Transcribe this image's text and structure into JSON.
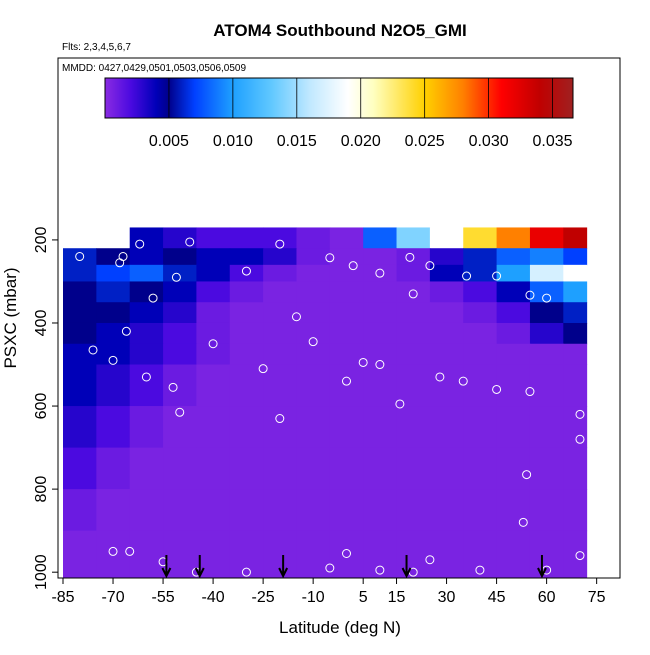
{
  "chart_data": {
    "type": "heatmap",
    "title": "ATOM4 Southbound N2O5_GMI",
    "subtitle": "Flts: 2,3,4,5,6,7",
    "annotation": "MMDD: 0427,0429,0501,0503,0506,0509",
    "xlabel": "Latitude (deg N)",
    "ylabel": "PSXC (mbar)",
    "xlim": [
      -86.5,
      82
    ],
    "ylim": [
      1014,
      -238
    ],
    "xticks": [
      -85,
      -70,
      -55,
      -40,
      -25,
      -10,
      5,
      15,
      30,
      45,
      60,
      75
    ],
    "yticks": [
      200,
      400,
      600,
      800,
      1000
    ],
    "x_edges": [
      -85,
      -75,
      -65,
      -55,
      -45,
      -35,
      -25,
      -15,
      -5,
      5,
      15,
      25,
      35,
      45,
      55,
      65,
      72
    ],
    "y_edges": [
      170,
      220,
      260,
      300,
      350,
      400,
      450,
      500,
      600,
      700,
      800,
      900,
      1014
    ],
    "z": [
      [
        null,
        null,
        0.004,
        0.003,
        0.002,
        0.002,
        0.002,
        0.001,
        0.0005,
        0.008,
        0.014,
        0.019,
        0.024,
        0.028,
        0.032,
        0.034
      ],
      [
        0.006,
        0.005,
        0.004,
        0.005,
        0.004,
        0.004,
        0.003,
        0.001,
        0.0005,
        0.0005,
        0.001,
        0.003,
        0.006,
        0.008,
        0.009,
        0.007
      ],
      [
        0.006,
        0.007,
        0.008,
        0.006,
        0.004,
        0.002,
        0.001,
        0.0005,
        0.0005,
        0.0005,
        0.001,
        0.004,
        0.006,
        0.01,
        0.017,
        0.019
      ],
      [
        0.005,
        0.006,
        0.005,
        0.004,
        0.002,
        0.001,
        0.0005,
        0.0005,
        0.0005,
        0.0005,
        0.0005,
        0.001,
        0.002,
        0.004,
        0.008,
        0.01
      ],
      [
        0.005,
        0.005,
        0.004,
        0.003,
        0.001,
        0.0005,
        0.0005,
        0.0005,
        0.0005,
        0.0005,
        0.0005,
        0.0005,
        0.001,
        0.002,
        0.005,
        0.006
      ],
      [
        0.005,
        0.004,
        0.003,
        0.002,
        0.001,
        0.0005,
        0.0005,
        0.0005,
        0.0005,
        0.0005,
        0.0005,
        0.0005,
        0.0005,
        0.001,
        0.003,
        0.005
      ],
      [
        0.004,
        0.004,
        0.003,
        0.002,
        0.001,
        0.0005,
        0.0005,
        0.0005,
        0.0005,
        0.0005,
        0.0005,
        0.0005,
        0.0005,
        0.0005,
        0.0005,
        0.0005
      ],
      [
        0.004,
        0.003,
        0.002,
        0.001,
        0.0005,
        0.0005,
        0.0005,
        0.0005,
        0.0005,
        0.0005,
        0.0005,
        0.0005,
        0.0005,
        0.0005,
        0.0005,
        0.0005
      ],
      [
        0.003,
        0.002,
        0.001,
        0.0005,
        0.0005,
        0.0005,
        0.0005,
        0.0005,
        0.0005,
        0.0005,
        0.0005,
        0.0005,
        0.0005,
        0.0005,
        0.0005,
        0.0005
      ],
      [
        0.002,
        0.001,
        0.0005,
        0.0005,
        0.0005,
        0.0005,
        0.0005,
        0.0005,
        0.0005,
        0.0005,
        0.0005,
        0.0005,
        0.0005,
        0.0005,
        0.0005,
        0.0005
      ],
      [
        0.001,
        0.0005,
        0.0005,
        0.0005,
        0.0005,
        0.0005,
        0.0005,
        0.0005,
        0.0005,
        0.0005,
        0.0005,
        0.0005,
        0.0005,
        0.0005,
        0.0005,
        0.0005
      ],
      [
        0.0005,
        0.0005,
        0.0005,
        0.0005,
        0.0005,
        0.0005,
        0.0005,
        0.0005,
        0.0005,
        0.0005,
        0.0005,
        0.0005,
        0.0005,
        0.0005,
        0.0005,
        0.0005
      ]
    ],
    "colorbar": {
      "lim": [
        0,
        0.0366
      ],
      "ticks": [
        0.005,
        {
          "value": 0.01,
          "label": "0.010"
        },
        0.015,
        {
          "value": 0.02,
          "label": "0.020"
        },
        0.025,
        {
          "value": 0.03,
          "label": "0.030"
        },
        0.035
      ],
      "colors": [
        [
          0,
          "#8a2be2"
        ],
        [
          0.002,
          "#4b0ae0"
        ],
        [
          0.004,
          "#0000b8"
        ],
        [
          0.005,
          "#00008b"
        ],
        [
          0.007,
          "#0040ff"
        ],
        [
          0.01,
          "#1ea0ff"
        ],
        [
          0.013,
          "#60c8ff"
        ],
        [
          0.016,
          "#c0e8ff"
        ],
        [
          0.019,
          "#ffffff"
        ],
        [
          0.021,
          "#ffffc0"
        ],
        [
          0.025,
          "#ffd000"
        ],
        [
          0.028,
          "#ff8000"
        ],
        [
          0.031,
          "#ff0000"
        ],
        [
          0.034,
          "#c00000"
        ],
        [
          0.0366,
          "#a02020"
        ]
      ]
    },
    "points": {
      "color": "#ffffff",
      "x": [
        -80,
        -67,
        -68,
        -62,
        -47,
        -30,
        -15,
        -20,
        -5,
        2,
        10,
        19,
        25,
        36,
        45,
        55,
        60,
        -51,
        -58,
        -66,
        -76,
        -70,
        -60,
        -52,
        -50,
        -40,
        -25,
        -20,
        -10,
        0,
        5,
        10,
        16,
        20,
        28,
        35,
        45,
        55,
        54,
        53,
        70,
        70,
        -70,
        -65,
        -55,
        -45,
        -30,
        -5,
        0,
        10,
        20,
        25,
        40,
        60,
        70
      ],
      "y": [
        240,
        240,
        255,
        210,
        205,
        275,
        385,
        210,
        243,
        262,
        280,
        242,
        262,
        287,
        287,
        333,
        340,
        290,
        340,
        420,
        465,
        490,
        530,
        555,
        615,
        450,
        510,
        630,
        445,
        540,
        495,
        500,
        595,
        330,
        530,
        540,
        560,
        565,
        765,
        880,
        620,
        680,
        950,
        950,
        975,
        1000,
        1000,
        990,
        955,
        995,
        1000,
        970,
        995,
        995,
        960
      ]
    },
    "arrows_x": [
      -54,
      -44,
      -19,
      18,
      58.6
    ]
  }
}
